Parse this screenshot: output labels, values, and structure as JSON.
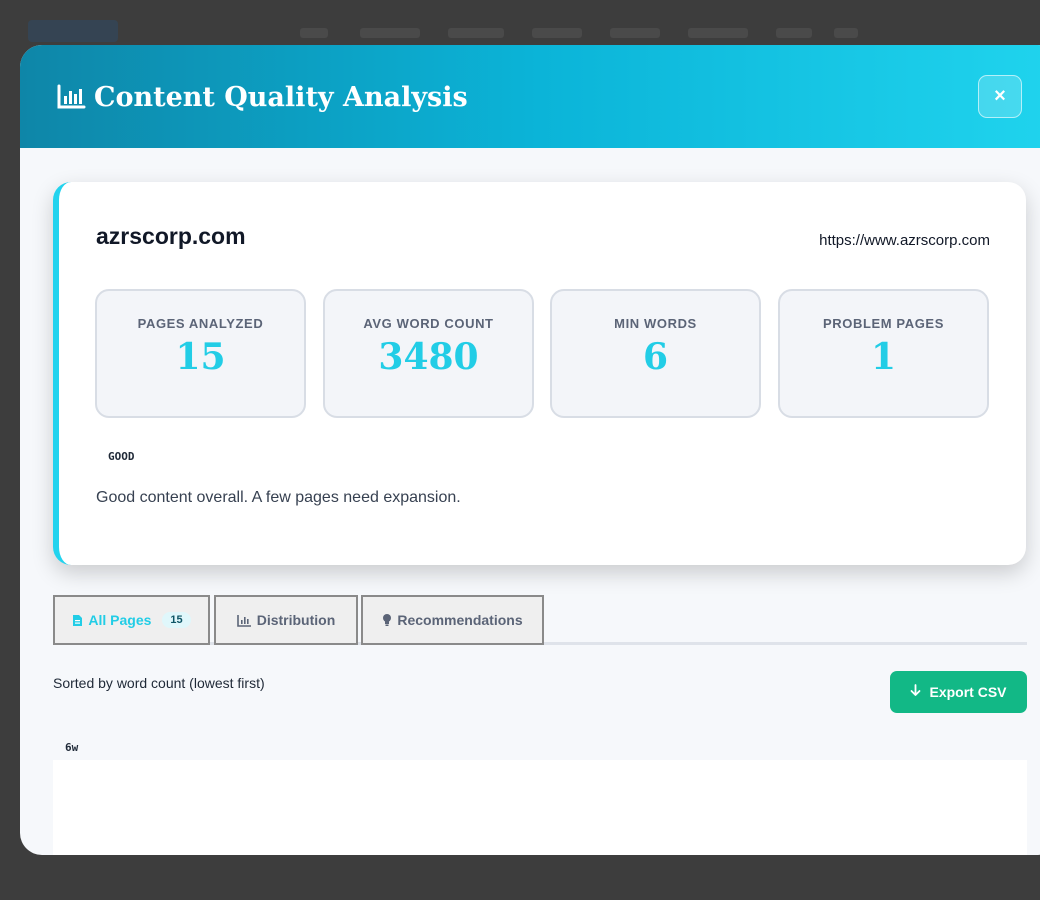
{
  "modal": {
    "title": "Content Quality Analysis",
    "close_label": "×"
  },
  "summary": {
    "site_name": "azrscorp.com",
    "site_url": "https://www.azrscorp.com",
    "stats": [
      {
        "label": "PAGES ANALYZED",
        "value": "15"
      },
      {
        "label": "AVG WORD COUNT",
        "value": "3480"
      },
      {
        "label": "MIN WORDS",
        "value": "6"
      },
      {
        "label": "PROBLEM PAGES",
        "value": "1"
      }
    ],
    "grade": "GOOD",
    "message": "Good content overall. A few pages need expansion."
  },
  "tabs": [
    {
      "label": "All Pages",
      "count": "15",
      "icon": "file-icon",
      "active": true
    },
    {
      "label": "Distribution",
      "icon": "bar-chart-icon",
      "active": false
    },
    {
      "label": "Recommendations",
      "icon": "lightbulb-icon",
      "active": false
    }
  ],
  "list": {
    "sort_note": "Sorted by word count (lowest first)",
    "export_label": "Export CSV",
    "first_word_count": "6w"
  },
  "colors": {
    "accent": "#22cde6",
    "export_green": "#12b886",
    "header_start": "#0e86a8",
    "header_end": "#20d4ee"
  }
}
